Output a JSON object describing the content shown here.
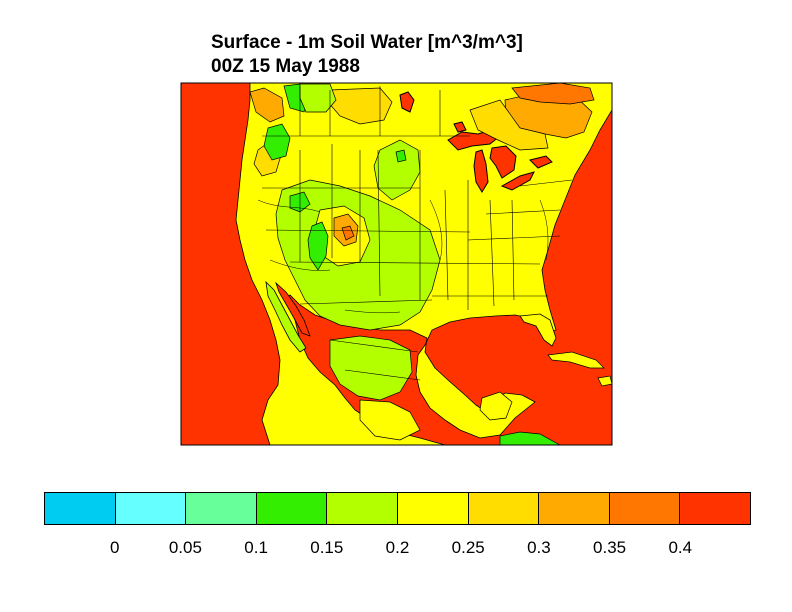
{
  "title": {
    "line1": "Surface - 1m Soil Water [m^3/m^3]",
    "line2": "00Z 15 May 1988"
  },
  "map": {
    "region": "North America",
    "variable": "Surface - 1m Soil Water",
    "units": "m^3/m^3",
    "ocean_value_class": ">= 0.4"
  },
  "colorbar": {
    "colors": [
      "#00ccf2",
      "#66ffff",
      "#66ff99",
      "#33ee00",
      "#b3ff00",
      "#ffff00",
      "#ffdd00",
      "#ffaa00",
      "#ff7700",
      "#ff3300"
    ],
    "tick_labels": [
      "0",
      "0.05",
      "0.1",
      "0.15",
      "0.2",
      "0.25",
      "0.3",
      "0.35",
      "0.4"
    ]
  },
  "colors": {
    "ocean": "#ff3300",
    "land_dominant": "#ffff00",
    "border": "#000000"
  }
}
